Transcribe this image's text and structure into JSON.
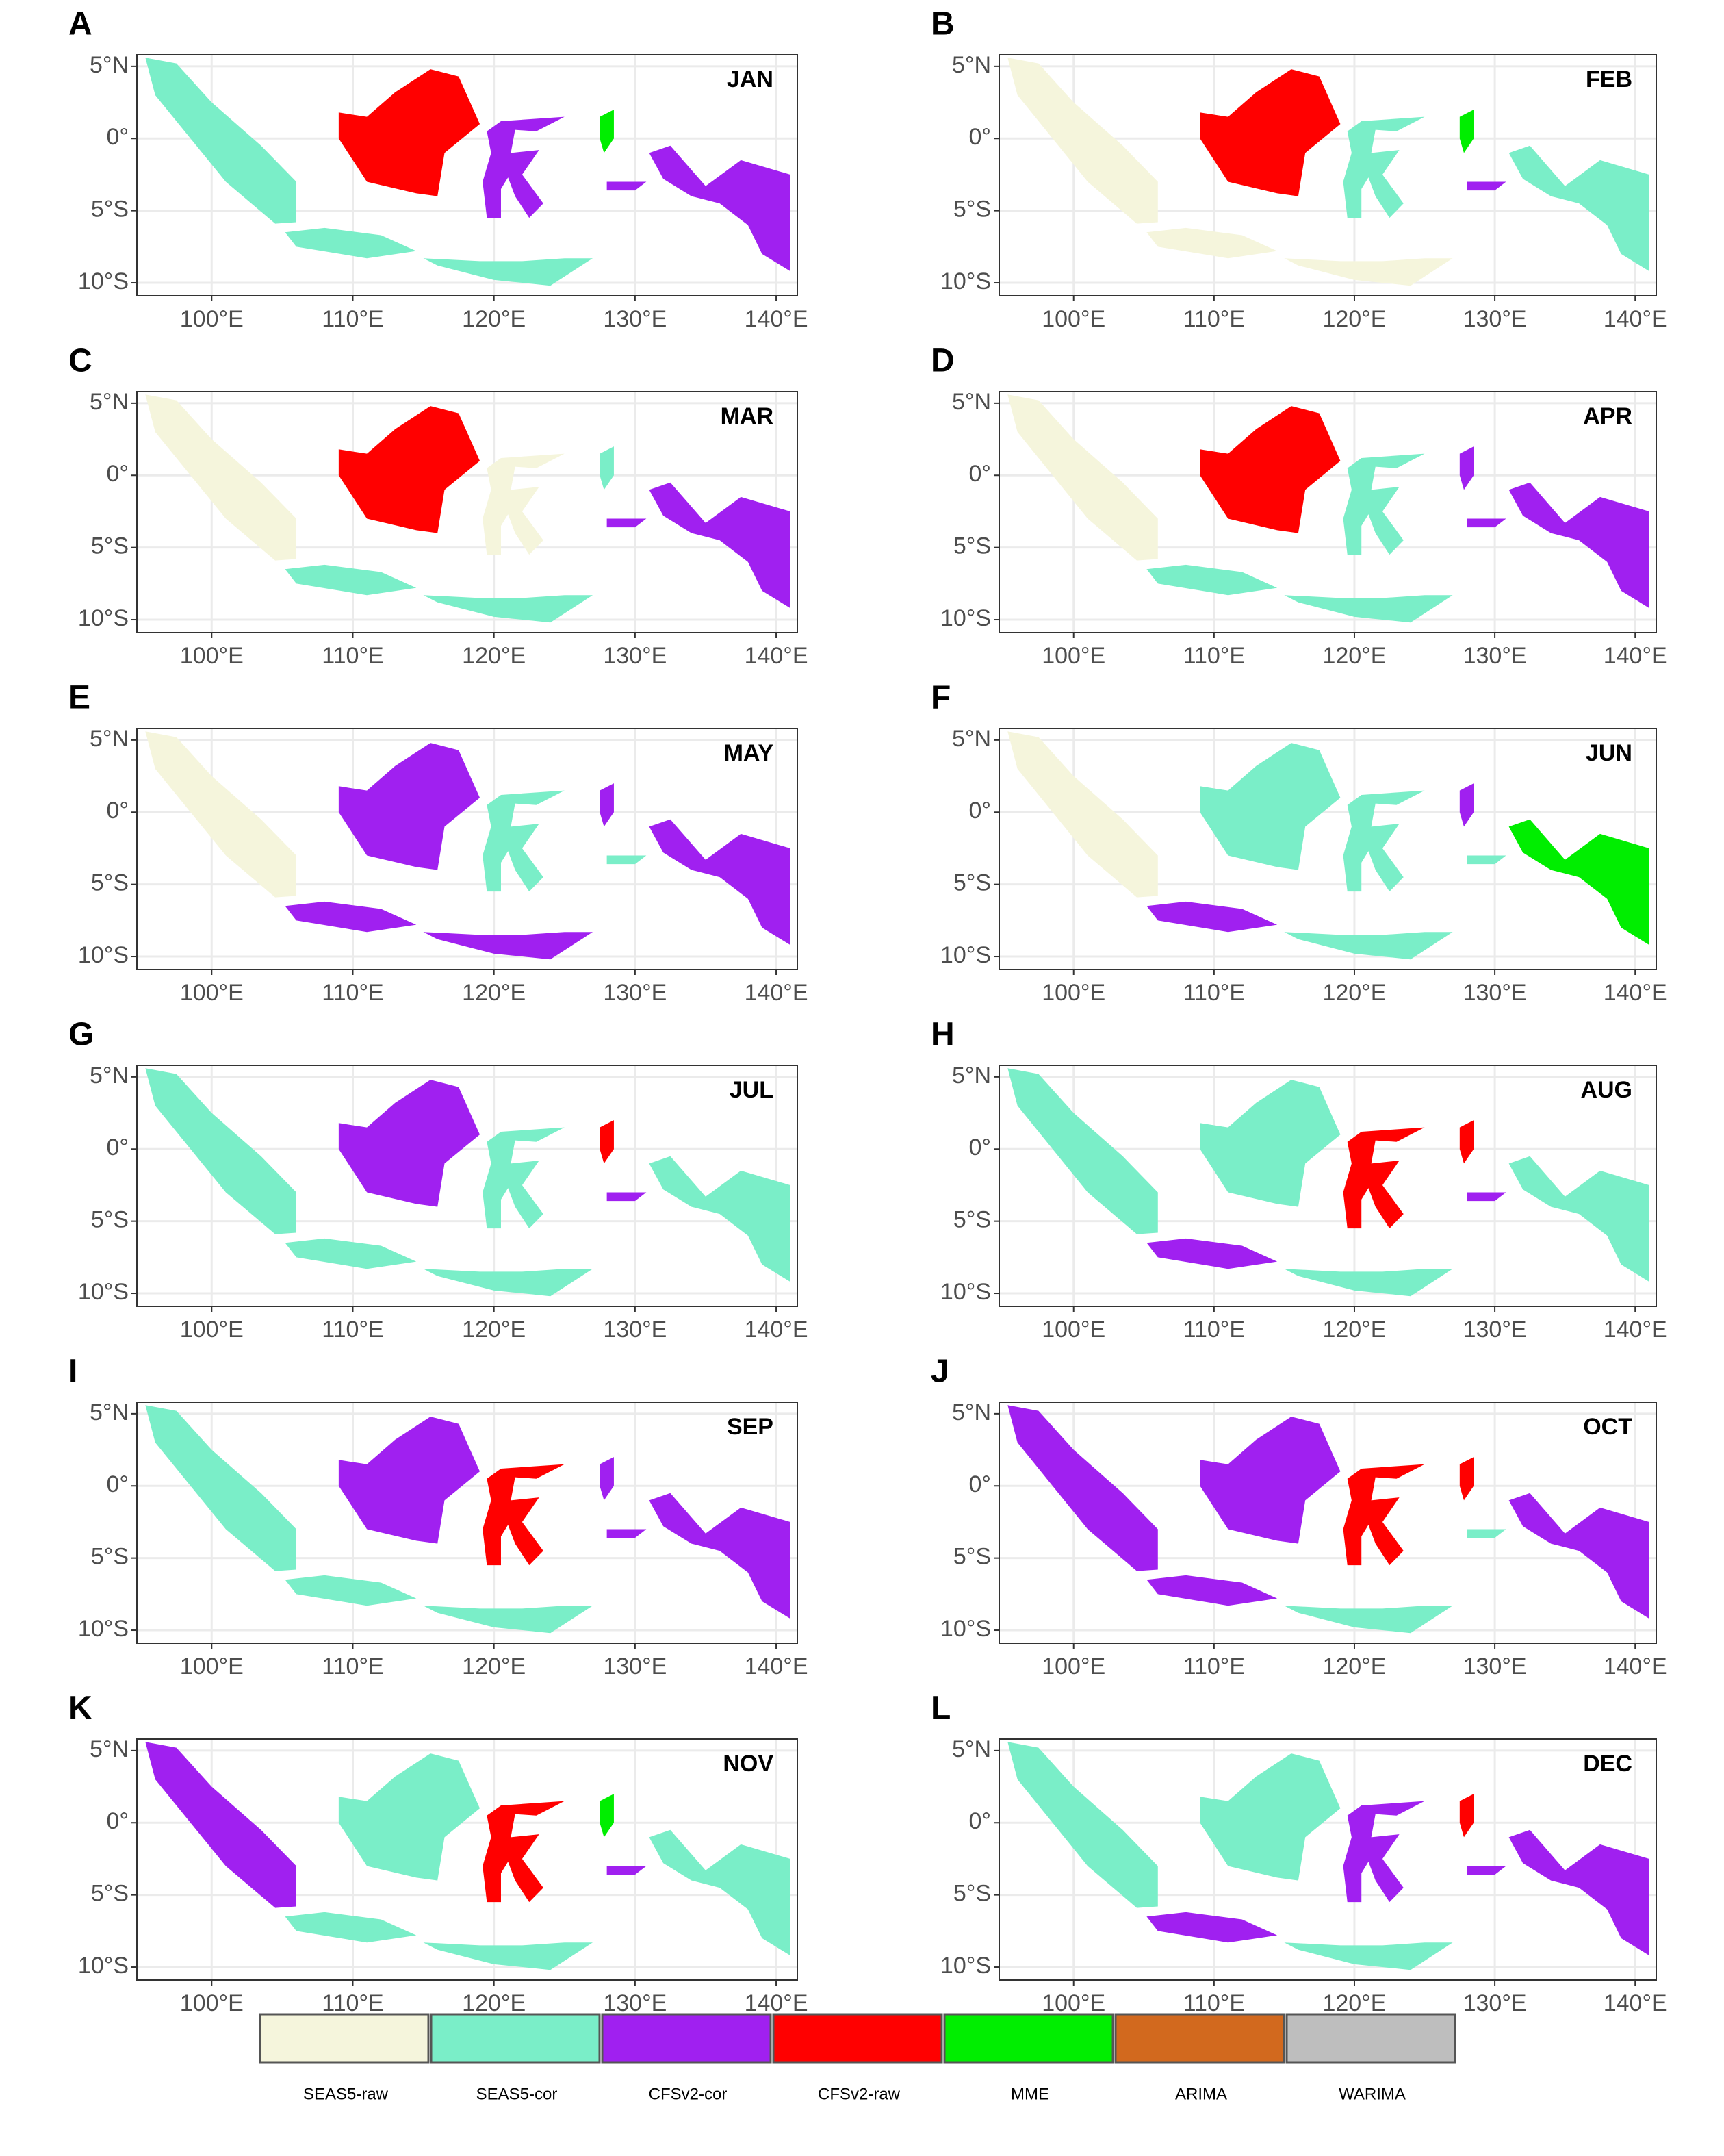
{
  "map": {
    "xlim": [
      94.7,
      141.5
    ],
    "ylim": [
      -10.9,
      5.8
    ],
    "xticks": [
      {
        "value": 100,
        "label": "100°E"
      },
      {
        "value": 110,
        "label": "110°E"
      },
      {
        "value": 120,
        "label": "120°E"
      },
      {
        "value": 130,
        "label": "130°E"
      },
      {
        "value": 140,
        "label": "140°E"
      }
    ],
    "yticks": [
      {
        "value": 5,
        "label": "5°N"
      },
      {
        "value": 0,
        "label": "0°"
      },
      {
        "value": -5,
        "label": "5°S"
      },
      {
        "value": -10,
        "label": "10°S"
      }
    ],
    "grid": true,
    "panels": [
      {
        "letter": "A",
        "month": "JAN",
        "fills": [
          "SEAS5-cor",
          "SEAS5-cor",
          "CFSv2-raw",
          "CFSv2-cor",
          "MME",
          "CFSv2-cor",
          "SEAS5-cor",
          "CFSv2-cor"
        ]
      },
      {
        "letter": "B",
        "month": "FEB",
        "fills": [
          "SEAS5-raw",
          "SEAS5-raw",
          "CFSv2-raw",
          "SEAS5-cor",
          "MME",
          "CFSv2-cor",
          "SEAS5-raw",
          "SEAS5-cor"
        ]
      },
      {
        "letter": "C",
        "month": "MAR",
        "fills": [
          "SEAS5-raw",
          "SEAS5-cor",
          "CFSv2-raw",
          "SEAS5-raw",
          "SEAS5-cor",
          "CFSv2-cor",
          "SEAS5-cor",
          "CFSv2-cor"
        ]
      },
      {
        "letter": "D",
        "month": "APR",
        "fills": [
          "SEAS5-raw",
          "SEAS5-cor",
          "CFSv2-raw",
          "SEAS5-cor",
          "CFSv2-cor",
          "CFSv2-cor",
          "SEAS5-cor",
          "CFSv2-cor"
        ]
      },
      {
        "letter": "E",
        "month": "MAY",
        "fills": [
          "SEAS5-raw",
          "CFSv2-cor",
          "CFSv2-cor",
          "SEAS5-cor",
          "CFSv2-cor",
          "SEAS5-cor",
          "CFSv2-cor",
          "CFSv2-cor"
        ]
      },
      {
        "letter": "F",
        "month": "JUN",
        "fills": [
          "SEAS5-raw",
          "CFSv2-cor",
          "SEAS5-cor",
          "SEAS5-cor",
          "CFSv2-cor",
          "SEAS5-cor",
          "SEAS5-cor",
          "MME"
        ]
      },
      {
        "letter": "G",
        "month": "JUL",
        "fills": [
          "SEAS5-cor",
          "SEAS5-cor",
          "CFSv2-cor",
          "SEAS5-cor",
          "CFSv2-raw",
          "CFSv2-cor",
          "SEAS5-cor",
          "SEAS5-cor"
        ]
      },
      {
        "letter": "H",
        "month": "AUG",
        "fills": [
          "SEAS5-cor",
          "CFSv2-cor",
          "SEAS5-cor",
          "CFSv2-raw",
          "CFSv2-raw",
          "CFSv2-cor",
          "SEAS5-cor",
          "SEAS5-cor"
        ]
      },
      {
        "letter": "I",
        "month": "SEP",
        "fills": [
          "SEAS5-cor",
          "SEAS5-cor",
          "CFSv2-cor",
          "CFSv2-raw",
          "CFSv2-cor",
          "CFSv2-cor",
          "SEAS5-cor",
          "CFSv2-cor"
        ]
      },
      {
        "letter": "J",
        "month": "OCT",
        "fills": [
          "CFSv2-cor",
          "CFSv2-cor",
          "CFSv2-cor",
          "CFSv2-raw",
          "CFSv2-raw",
          "SEAS5-cor",
          "SEAS5-cor",
          "CFSv2-cor"
        ]
      },
      {
        "letter": "K",
        "month": "NOV",
        "fills": [
          "CFSv2-cor",
          "SEAS5-cor",
          "SEAS5-cor",
          "CFSv2-raw",
          "MME",
          "CFSv2-cor",
          "SEAS5-cor",
          "SEAS5-cor"
        ]
      },
      {
        "letter": "L",
        "month": "DEC",
        "fills": [
          "SEAS5-cor",
          "CFSv2-cor",
          "SEAS5-cor",
          "CFSv2-cor",
          "CFSv2-raw",
          "CFSv2-cor",
          "SEAS5-cor",
          "CFSv2-cor"
        ]
      }
    ],
    "legend": [
      {
        "name": "SEAS5-raw",
        "color": "#f5f5dc"
      },
      {
        "name": "SEAS5-cor",
        "color": "#7aeec8"
      },
      {
        "name": "CFSv2-cor",
        "color": "#a020f0"
      },
      {
        "name": "CFSv2-raw",
        "color": "#ff0000"
      },
      {
        "name": "MME",
        "color": "#00ee00"
      },
      {
        "name": "ARIMA",
        "color": "#d2691e"
      },
      {
        "name": "WARIMA",
        "color": "#bebebe"
      }
    ]
  }
}
